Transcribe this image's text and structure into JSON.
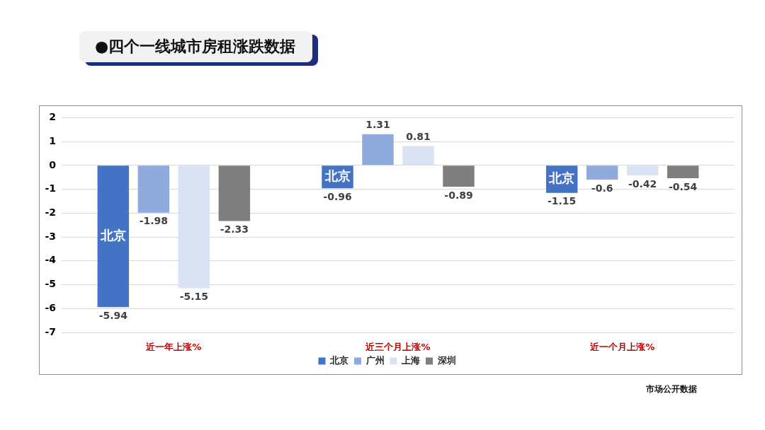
{
  "chart_data": {
    "type": "bar",
    "title": "●四个一线城市房租涨跌数据",
    "categories": [
      "近一年上涨%",
      "近三个月上涨%",
      "近一个月上涨%"
    ],
    "series": [
      {
        "name": "北京",
        "color": "#4472c4",
        "values": [
          -5.94,
          -0.96,
          -1.15
        ]
      },
      {
        "name": "广州",
        "color": "#8faadc",
        "values": [
          -1.98,
          1.31,
          -0.6
        ]
      },
      {
        "name": "上海",
        "color": "#dae3f3",
        "values": [
          -5.15,
          0.81,
          -0.42
        ]
      },
      {
        "name": "深圳",
        "color": "#7f7f7f",
        "values": [
          -2.33,
          -0.89,
          -0.54
        ]
      }
    ],
    "ylim": [
      -7,
      2
    ],
    "yticks": [
      -7,
      -6,
      -5,
      -4,
      -3,
      -2,
      -1,
      0,
      1,
      2
    ],
    "grid": "y",
    "legend": "bottom",
    "data_labels": true,
    "annotations": [
      "市场公开数据"
    ]
  }
}
